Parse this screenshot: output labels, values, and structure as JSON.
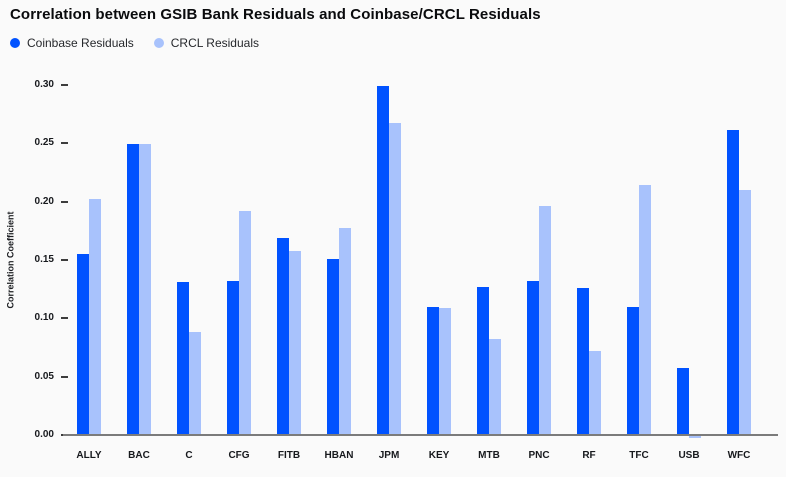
{
  "title": "Correlation between GSIB Bank Residuals and Coinbase/CRCL Residuals",
  "colors": {
    "background": "#fafafa",
    "coinbase_blue": "#0052ff",
    "crcl_light_blue": "#a8c2fc",
    "axis_line": "#7b7b7b",
    "text": "#0a0b0d"
  },
  "chart_data": {
    "type": "bar",
    "title": "Correlation between GSIB Bank Residuals and Coinbase/CRCL Residuals",
    "xlabel": "",
    "ylabel": "Correlation Coefficient",
    "ylim": [
      0,
      0.3
    ],
    "grid": false,
    "legend_position": "top-left",
    "ytick_labels": [
      "0.30",
      "0.25",
      "0.20",
      "0.15",
      "0.10",
      "0.05",
      "0.00"
    ],
    "ytick_values": [
      0.3,
      0.25,
      0.2,
      0.15,
      0.1,
      0.05,
      0.0
    ],
    "categories": [
      "ALLY",
      "BAC",
      "C",
      "CFG",
      "FITB",
      "HBAN",
      "JPM",
      "KEY",
      "MTB",
      "PNC",
      "RF",
      "TFC",
      "USB",
      "WFC"
    ],
    "series": [
      {
        "name": "Coinbase Residuals",
        "color": "#0052ff",
        "values": [
          0.155,
          0.249,
          0.131,
          0.132,
          0.169,
          0.151,
          0.299,
          0.11,
          0.127,
          0.132,
          0.126,
          0.11,
          0.057,
          0.261
        ]
      },
      {
        "name": "CRCL Residuals",
        "color": "#a8c2fc",
        "values": [
          0.202,
          0.249,
          0.088,
          0.192,
          0.158,
          0.177,
          0.267,
          0.109,
          0.082,
          0.196,
          0.072,
          0.214,
          -0.002,
          0.21
        ]
      }
    ]
  }
}
